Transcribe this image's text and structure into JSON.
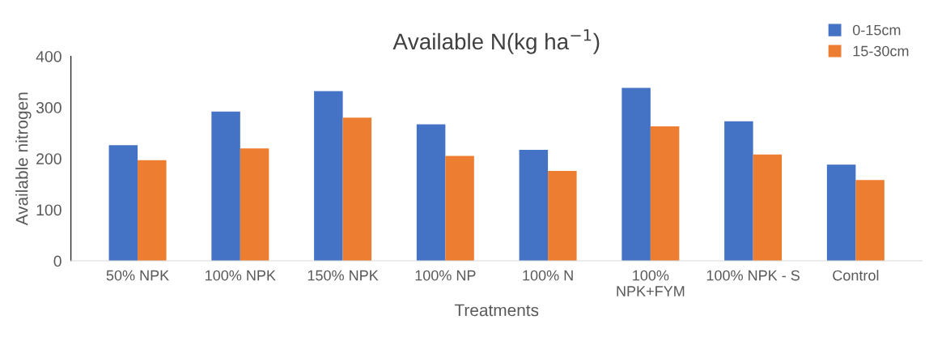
{
  "chart_data": {
    "type": "bar",
    "title": "Available N(kg ha$^{−1}$)",
    "xlabel": "Treatments",
    "ylabel": "Available nitrogen",
    "categories": [
      "50% NPK",
      "100% NPK",
      "150% NPK",
      "100% NP",
      "100% N",
      "100%\nNPK+FYM",
      "100% NPK - S",
      "Control"
    ],
    "series": [
      {
        "name": "0-15cm",
        "color": "#4472c4",
        "values": [
          226,
          292,
          332,
          267,
          217,
          338,
          273,
          188
        ]
      },
      {
        "name": "15-30cm",
        "color": "#ed7d31",
        "values": [
          197,
          220,
          280,
          205,
          176,
          263,
          208,
          158
        ]
      }
    ],
    "ylim": [
      0,
      400
    ],
    "yticks": [
      0,
      100,
      200,
      300,
      400
    ],
    "grid": false,
    "legend": "top right"
  }
}
